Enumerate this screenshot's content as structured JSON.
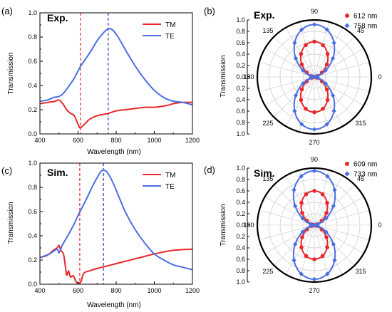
{
  "panels": {
    "a_letter": "(a)",
    "b_letter": "(b)",
    "c_letter": "(c)",
    "d_letter": "(d)"
  },
  "colors": {
    "tm": "#e8282a",
    "te": "#4a6fe3",
    "axis": "#000000",
    "grid": "#c8c8c8"
  },
  "chart_data": [
    {
      "id": "a",
      "type": "line",
      "panel_label": "Exp.",
      "xlabel": "Wavelength (nm)",
      "ylabel": "Transmission",
      "xlim": [
        400,
        1200
      ],
      "ylim": [
        0,
        1.0
      ],
      "xticks": [
        400,
        600,
        800,
        1000,
        1200
      ],
      "yticks": [
        0.0,
        0.2,
        0.4,
        0.6,
        0.8,
        1.0
      ],
      "legend": "top-right",
      "vlines": [
        {
          "x": 612,
          "color": "#e8282a",
          "style": "dashed"
        },
        {
          "x": 758,
          "color": "#2a2ad0",
          "style": "dashed"
        }
      ],
      "series": [
        {
          "name": "TM",
          "color": "#e8282a",
          "x": [
            400,
            440,
            480,
            500,
            520,
            540,
            560,
            580,
            600,
            610,
            620,
            640,
            660,
            700,
            760,
            800,
            850,
            900,
            950,
            1000,
            1050,
            1080,
            1100,
            1150,
            1200
          ],
          "y": [
            0.25,
            0.26,
            0.27,
            0.28,
            0.25,
            0.2,
            0.17,
            0.15,
            0.08,
            0.05,
            0.06,
            0.09,
            0.12,
            0.15,
            0.17,
            0.19,
            0.2,
            0.21,
            0.22,
            0.22,
            0.23,
            0.24,
            0.25,
            0.26,
            0.26
          ]
        },
        {
          "name": "TE",
          "color": "#4a6fe3",
          "x": [
            400,
            440,
            470,
            500,
            520,
            550,
            580,
            610,
            640,
            670,
            700,
            730,
            750,
            760,
            780,
            810,
            850,
            900,
            950,
            1000,
            1050,
            1100,
            1150,
            1200
          ],
          "y": [
            0.27,
            0.28,
            0.3,
            0.31,
            0.33,
            0.39,
            0.46,
            0.55,
            0.62,
            0.69,
            0.77,
            0.83,
            0.86,
            0.87,
            0.86,
            0.8,
            0.69,
            0.56,
            0.45,
            0.36,
            0.3,
            0.27,
            0.26,
            0.24
          ]
        }
      ]
    },
    {
      "id": "c",
      "type": "line",
      "panel_label": "Sim.",
      "xlabel": "Wavelength (nm)",
      "ylabel": "Transmission",
      "xlim": [
        400,
        1200
      ],
      "ylim": [
        0,
        1.0
      ],
      "xticks": [
        400,
        600,
        800,
        1000,
        1200
      ],
      "yticks": [
        0.0,
        0.2,
        0.4,
        0.6,
        0.8,
        1.0
      ],
      "legend": "top-right",
      "vlines": [
        {
          "x": 609,
          "color": "#e8282a",
          "style": "dashed"
        },
        {
          "x": 733,
          "color": "#2a2ad0",
          "style": "dashed"
        }
      ],
      "series": [
        {
          "name": "TM",
          "color": "#e8282a",
          "x": [
            400,
            440,
            470,
            490,
            500,
            510,
            525,
            540,
            550,
            560,
            575,
            590,
            600,
            615,
            630,
            660,
            700,
            750,
            800,
            850,
            900,
            950,
            1000,
            1100,
            1200
          ],
          "y": [
            0.22,
            0.24,
            0.28,
            0.3,
            0.32,
            0.28,
            0.24,
            0.08,
            0.11,
            0.06,
            0.07,
            0.02,
            0.01,
            0.02,
            0.09,
            0.11,
            0.13,
            0.15,
            0.17,
            0.19,
            0.21,
            0.23,
            0.25,
            0.28,
            0.29
          ]
        },
        {
          "name": "TE",
          "color": "#4a6fe3",
          "x": [
            400,
            450,
            490,
            500,
            520,
            550,
            580,
            610,
            640,
            670,
            700,
            720,
            733,
            750,
            780,
            820,
            850,
            900,
            950,
            1000,
            1050,
            1100,
            1150,
            1200
          ],
          "y": [
            0.22,
            0.25,
            0.29,
            0.26,
            0.33,
            0.41,
            0.5,
            0.6,
            0.69,
            0.79,
            0.88,
            0.93,
            0.94,
            0.93,
            0.85,
            0.7,
            0.59,
            0.45,
            0.34,
            0.25,
            0.2,
            0.16,
            0.14,
            0.12
          ]
        }
      ]
    },
    {
      "id": "b",
      "type": "polar",
      "panel_label": "Exp.",
      "ylabel": "Transmission",
      "rlim": [
        0,
        1.0
      ],
      "rticks": [
        0.0,
        0.2,
        0.4,
        0.6,
        0.8,
        1.0
      ],
      "angle_labels": [
        "0",
        "45",
        "90",
        "135",
        "180",
        "225",
        "270",
        "315"
      ],
      "legend": "top-right",
      "series": [
        {
          "name": "612 nm",
          "color": "#e8282a",
          "marker": "circle",
          "amplitude": 0.62
        },
        {
          "name": "758 nm",
          "color": "#4a6fe3",
          "marker": "diamond",
          "amplitude": 0.92
        }
      ]
    },
    {
      "id": "d",
      "type": "polar",
      "panel_label": "Sim.",
      "ylabel": "Transmission",
      "rlim": [
        0,
        1.0
      ],
      "rticks": [
        0.0,
        0.2,
        0.4,
        0.6,
        0.8,
        1.0
      ],
      "angle_labels": [
        "0",
        "45",
        "90",
        "135",
        "180",
        "225",
        "270",
        "315"
      ],
      "legend": "top-right",
      "series": [
        {
          "name": "609 nm",
          "color": "#e8282a",
          "marker": "circle",
          "amplitude": 0.6
        },
        {
          "name": "733 nm",
          "color": "#4a6fe3",
          "marker": "diamond",
          "amplitude": 0.95
        }
      ]
    }
  ]
}
